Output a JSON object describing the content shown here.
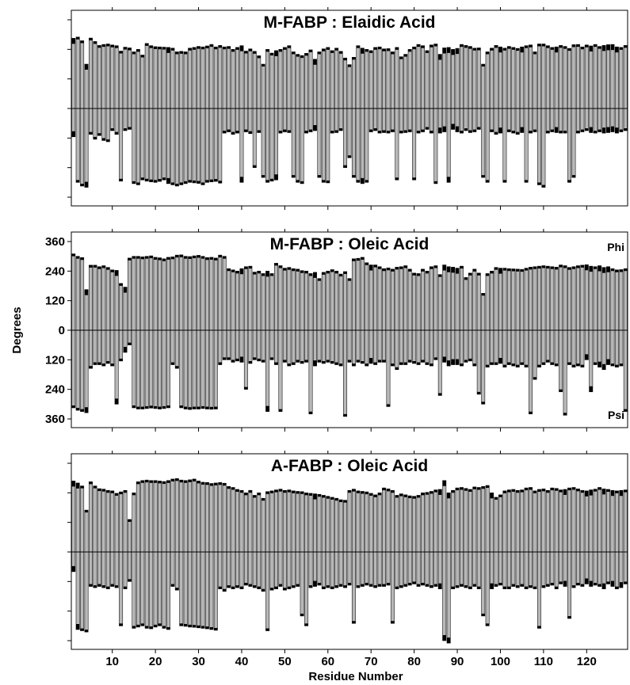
{
  "figure": {
    "ylabel": "Degrees",
    "xlabel": "Residue Number"
  },
  "chart_data": [
    {
      "type": "bar",
      "title": "M-FABP : Elaidic Acid",
      "ytick_labels_shown": false,
      "corner_labels": {
        "top": "",
        "bottom": ""
      },
      "xlim": [
        0.5,
        129.5
      ],
      "ylim": [
        -370,
        370
      ],
      "phi": [
        285,
        290,
        275,
        180,
        286,
        272,
        256,
        260,
        262,
        258,
        255,
        233,
        249,
        246,
        230,
        240,
        217,
        264,
        255,
        251,
        250,
        249,
        248,
        245,
        230,
        232,
        230,
        245,
        248,
        252,
        250,
        254,
        260,
        250,
        256,
        250,
        252,
        240,
        248,
        255,
        233,
        242,
        232,
        214,
        180,
        240,
        225,
        235,
        240,
        248,
        255,
        230,
        220,
        215,
        224,
        238,
        200,
        230,
        242,
        248,
        235,
        245,
        232,
        205,
        178,
        208,
        255,
        245,
        240,
        235,
        248,
        250,
        242,
        243,
        230,
        248,
        210,
        220,
        240,
        250,
        260,
        255,
        235,
        258,
        262,
        220,
        246,
        248,
        240,
        244,
        260,
        256,
        252,
        245,
        246,
        180,
        230,
        245,
        256,
        250,
        245,
        252,
        248,
        244,
        250,
        255,
        258,
        230,
        262,
        262,
        255,
        248,
        250,
        256,
        252,
        244,
        259,
        260,
        250,
        258,
        254,
        260,
        252,
        256,
        259,
        260,
        250,
        248,
        256
      ],
      "psi": [
        -115,
        -300,
        -315,
        -320,
        -105,
        -125,
        -110,
        -130,
        -135,
        -90,
        -105,
        -295,
        -90,
        -85,
        -305,
        -310,
        -290,
        -295,
        -298,
        -300,
        -296,
        -290,
        -305,
        -310,
        -315,
        -310,
        -305,
        -300,
        -302,
        -304,
        -310,
        -300,
        -298,
        -296,
        -303,
        -100,
        -95,
        -105,
        -100,
        -300,
        -95,
        -102,
        -240,
        -98,
        -280,
        -300,
        -295,
        -290,
        -100,
        -95,
        -98,
        -280,
        -300,
        -305,
        -100,
        -95,
        -90,
        -280,
        -300,
        -302,
        -100,
        -98,
        -90,
        -240,
        -200,
        -280,
        -300,
        -305,
        -300,
        -95,
        -90,
        -100,
        -98,
        -100,
        -95,
        -290,
        -100,
        -98,
        -95,
        -290,
        -100,
        -95,
        -85,
        -100,
        -305,
        -100,
        -95,
        -300,
        -85,
        -95,
        -100,
        -90,
        -98,
        -95,
        -85,
        -280,
        -300,
        -95,
        -105,
        -100,
        -300,
        -95,
        -100,
        -105,
        -98,
        -300,
        -100,
        -95,
        -310,
        -320,
        -100,
        -95,
        -98,
        -100,
        -100,
        -300,
        -280,
        -100,
        -95,
        -90,
        -98,
        -100,
        -95,
        -100,
        -98,
        -95,
        -100,
        -95,
        -90
      ],
      "black_tips": [
        1,
        4,
        23,
        40,
        48,
        57,
        68,
        86,
        87,
        88,
        89,
        90,
        100,
        105,
        113,
        121,
        124,
        125,
        126,
        127
      ]
    },
    {
      "type": "bar",
      "title": "M-FABP : Oleic Acid",
      "ytick_labels_shown": true,
      "yticks": [
        -360,
        -240,
        -120,
        0,
        120,
        240,
        360
      ],
      "ytick_labels": [
        "360",
        "240",
        "120",
        "0",
        "120",
        "240",
        "360"
      ],
      "corner_labels": {
        "top": "Phi",
        "bottom": "Psi"
      },
      "xlim": [
        0.5,
        129.5
      ],
      "ylim": [
        -370,
        370
      ],
      "phi": [
        310,
        300,
        295,
        165,
        264,
        264,
        258,
        262,
        255,
        245,
        243,
        190,
        175,
        293,
        300,
        300,
        298,
        300,
        302,
        296,
        294,
        290,
        296,
        298,
        305,
        306,
        300,
        299,
        302,
        304,
        300,
        295,
        296,
        293,
        305,
        300,
        250,
        245,
        240,
        250,
        258,
        260,
        236,
        240,
        230,
        240,
        230,
        272,
        262,
        252,
        255,
        250,
        248,
        242,
        240,
        230,
        235,
        210,
        235,
        240,
        246,
        240,
        228,
        238,
        210,
        290,
        292,
        296,
        274,
        265,
        265,
        258,
        250,
        253,
        248,
        256,
        258,
        262,
        248,
        232,
        230,
        248,
        240,
        258,
        262,
        226,
        265,
        258,
        256,
        252,
        260,
        214,
        232,
        248,
        232,
        150,
        230,
        240,
        255,
        252,
        252,
        250,
        249,
        248,
        247,
        252,
        256,
        258,
        260,
        262,
        260,
        258,
        256,
        265,
        262,
        255,
        258,
        262,
        264,
        266,
        260,
        258,
        262,
        255,
        258,
        250,
        245,
        246,
        250
      ],
      "psi": [
        -315,
        -325,
        -330,
        -335,
        -155,
        -140,
        -140,
        -145,
        -135,
        -145,
        -300,
        -125,
        -90,
        -60,
        -315,
        -320,
        -320,
        -318,
        -316,
        -318,
        -320,
        -318,
        -315,
        -140,
        -155,
        -315,
        -320,
        -322,
        -320,
        -320,
        -318,
        -320,
        -321,
        -320,
        -140,
        -120,
        -120,
        -130,
        -125,
        -130,
        -240,
        -135,
        -120,
        -125,
        -130,
        -330,
        -120,
        -140,
        -330,
        -130,
        -145,
        -140,
        -130,
        -135,
        -130,
        -340,
        -145,
        -130,
        -135,
        -130,
        -135,
        -140,
        -145,
        -350,
        -130,
        -145,
        -130,
        -135,
        -145,
        -135,
        -140,
        -130,
        -130,
        -310,
        -145,
        -160,
        -140,
        -140,
        -130,
        -135,
        -140,
        -130,
        -140,
        -145,
        -120,
        -265,
        -130,
        -145,
        -140,
        -140,
        -145,
        -130,
        -125,
        -145,
        -260,
        -300,
        -150,
        -140,
        -140,
        -135,
        -150,
        -140,
        -145,
        -150,
        -140,
        -150,
        -340,
        -200,
        -150,
        -140,
        -130,
        -140,
        -145,
        -250,
        -345,
        -140,
        -150,
        -145,
        -150,
        -120,
        -250,
        -140,
        -150,
        -160,
        -140,
        -145,
        -150,
        -145,
        -330
      ],
      "black_tips": [
        4,
        11,
        13,
        40,
        46,
        57,
        70,
        87,
        88,
        89,
        90,
        100,
        120,
        121,
        123,
        124,
        125
      ]
    },
    {
      "type": "bar",
      "title": "A-FABP : Oleic Acid",
      "ytick_labels_shown": false,
      "corner_labels": {
        "top": "",
        "bottom": ""
      },
      "xlim": [
        0.5,
        129.5
      ],
      "ylim": [
        -370,
        370
      ],
      "phi": [
        288,
        280,
        268,
        170,
        285,
        268,
        257,
        255,
        250,
        248,
        238,
        244,
        250,
        132,
        240,
        285,
        290,
        292,
        290,
        290,
        288,
        286,
        290,
        296,
        298,
        292,
        290,
        293,
        296,
        288,
        283,
        282,
        278,
        280,
        282,
        279,
        266,
        262,
        254,
        250,
        240,
        250,
        230,
        240,
        218,
        245,
        248,
        252,
        255,
        250,
        252,
        248,
        246,
        245,
        240,
        238,
        236,
        234,
        230,
        226,
        222,
        218,
        212,
        210,
        250,
        255,
        248,
        246,
        244,
        238,
        232,
        240,
        260,
        256,
        250,
        230,
        236,
        232,
        228,
        226,
        230,
        240,
        242,
        246,
        252,
        254,
        290,
        240,
        250,
        260,
        262,
        258,
        254,
        264,
        262,
        266,
        270,
        240,
        222,
        232,
        248,
        252,
        254,
        250,
        252,
        260,
        262,
        248,
        254,
        256,
        250,
        260,
        258,
        252,
        254,
        260,
        262,
        256,
        250,
        248,
        252,
        255,
        262,
        256,
        254,
        250,
        248,
        250,
        252
      ],
      "psi": [
        -80,
        -315,
        -320,
        -325,
        -140,
        -145,
        -140,
        -145,
        -150,
        -140,
        -145,
        -300,
        -150,
        -120,
        -310,
        -305,
        -300,
        -310,
        -312,
        -305,
        -300,
        -310,
        -315,
        -140,
        -155,
        -300,
        -302,
        -305,
        -306,
        -308,
        -310,
        -312,
        -315,
        -318,
        -150,
        -160,
        -145,
        -150,
        -145,
        -150,
        -135,
        -140,
        -145,
        -150,
        -160,
        -320,
        -155,
        -150,
        -140,
        -155,
        -150,
        -145,
        -140,
        -260,
        -300,
        -145,
        -140,
        -135,
        -150,
        -145,
        -150,
        -145,
        -140,
        -145,
        -135,
        -290,
        -145,
        -140,
        -135,
        -140,
        -145,
        -140,
        -140,
        -135,
        -290,
        -150,
        -145,
        -140,
        -135,
        -130,
        -140,
        -135,
        -140,
        -145,
        -140,
        -150,
        -360,
        -370,
        -150,
        -145,
        -140,
        -145,
        -150,
        -140,
        -150,
        -260,
        -300,
        -150,
        -140,
        -135,
        -150,
        -150,
        -140,
        -145,
        -140,
        -150,
        -145,
        -150,
        -310,
        -145,
        -140,
        -135,
        -150,
        -130,
        -140,
        -270,
        -145,
        -135,
        -140,
        -130,
        -140,
        -135,
        -140,
        -150,
        -130,
        -140,
        -150,
        -145,
        -130
      ],
      "black_tips": [
        1,
        2,
        57,
        86,
        87,
        88,
        98,
        115,
        120,
        121,
        124,
        126,
        128
      ]
    }
  ],
  "xaxis": {
    "ticks": [
      10,
      20,
      30,
      40,
      50,
      60,
      70,
      80,
      90,
      100,
      110,
      120
    ],
    "tick_labels": [
      "10",
      "20",
      "30",
      "40",
      "50",
      "60",
      "70",
      "80",
      "90",
      "100",
      "110",
      "120"
    ]
  },
  "colors": {
    "bar_fill": "#b8b8b8",
    "bar_edge": "#1a1a1a",
    "tip": "#000000",
    "axis": "#000000",
    "zero_line": "#000000"
  }
}
